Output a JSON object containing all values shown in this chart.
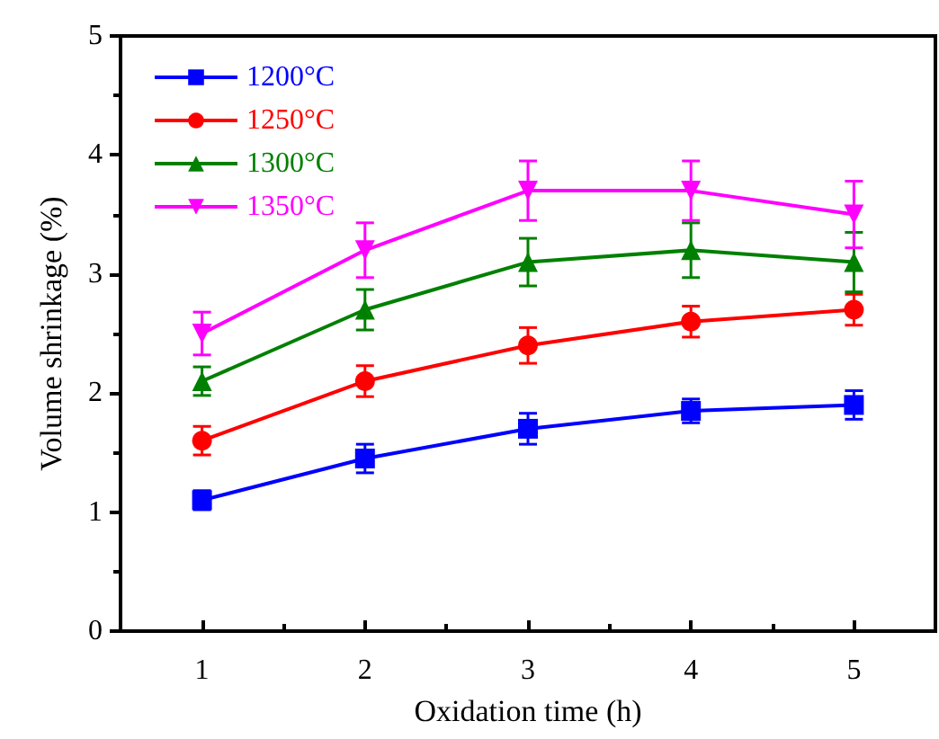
{
  "chart_data": {
    "type": "line",
    "xlabel": "Oxidation time (h)",
    "ylabel": "Volume shrinkage (%)",
    "x": [
      1,
      2,
      3,
      4,
      5
    ],
    "xlim": [
      0.5,
      5.5
    ],
    "xticks": [
      1,
      2,
      3,
      4,
      5
    ],
    "ylim": [
      0,
      5
    ],
    "yticks": [
      0,
      1,
      2,
      3,
      4,
      5
    ],
    "grid": false,
    "legend": "top left",
    "line_style": "solid",
    "series": [
      {
        "name": "1200°C",
        "color": "#0000ff",
        "marker": "square",
        "values": [
          1.1,
          1.45,
          1.7,
          1.85,
          1.9
        ],
        "errors": [
          0.08,
          0.12,
          0.13,
          0.1,
          0.12
        ]
      },
      {
        "name": "1250°C",
        "color": "#ff0000",
        "marker": "circle",
        "values": [
          1.6,
          2.1,
          2.4,
          2.6,
          2.7
        ],
        "errors": [
          0.12,
          0.13,
          0.15,
          0.13,
          0.13
        ]
      },
      {
        "name": "1300°C",
        "color": "#008000",
        "marker": "triangle",
        "values": [
          2.1,
          2.7,
          3.1,
          3.2,
          3.1
        ],
        "errors": [
          0.12,
          0.17,
          0.2,
          0.23,
          0.25
        ]
      },
      {
        "name": "1350°C",
        "color": "#ff00ff",
        "marker": "triangle-down",
        "values": [
          2.5,
          3.2,
          3.7,
          3.7,
          3.5
        ],
        "errors": [
          0.18,
          0.23,
          0.25,
          0.25,
          0.28
        ]
      }
    ]
  }
}
